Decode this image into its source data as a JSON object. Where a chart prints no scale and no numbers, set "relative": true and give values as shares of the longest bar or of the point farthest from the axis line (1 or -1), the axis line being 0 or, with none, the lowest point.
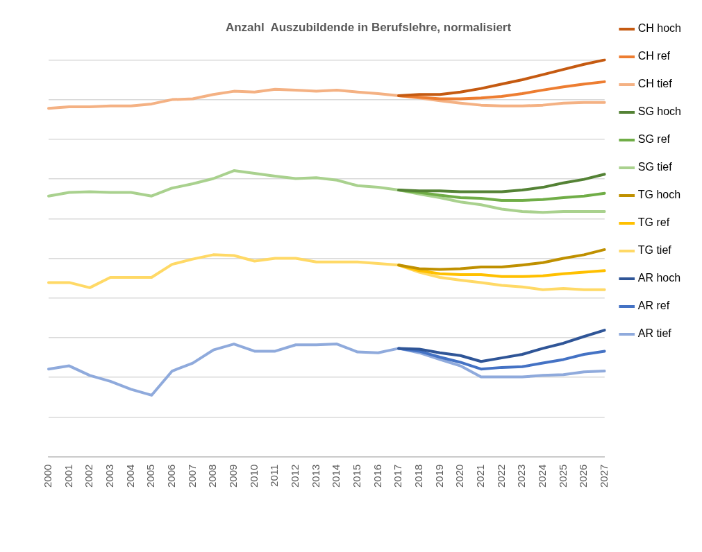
{
  "chart_data": {
    "type": "line",
    "title": "Anzahl  Auszubildende in Berufslehre, normalisiert",
    "relative": true,
    "grid": "y",
    "legend": "right",
    "categories": [
      "2000",
      "2001",
      "2002",
      "2003",
      "2004",
      "2005",
      "2006",
      "2007",
      "2008",
      "2009",
      "2010",
      "2011",
      "2012",
      "2013",
      "2014",
      "2015",
      "2016",
      "2017",
      "2018",
      "2019",
      "2020",
      "2021",
      "2022",
      "2023",
      "2024",
      "2025",
      "2026",
      "2027"
    ],
    "series": [
      {
        "name": "CH hoch",
        "color": "#c55a11",
        "values": [
          null,
          null,
          null,
          null,
          null,
          null,
          null,
          null,
          null,
          null,
          null,
          null,
          null,
          null,
          null,
          null,
          null,
          0.91,
          0.913,
          0.913,
          0.919,
          0.928,
          0.939,
          0.95,
          0.963,
          0.976,
          0.989,
          1.0
        ]
      },
      {
        "name": "CH ref",
        "color": "#ed7d31",
        "values": [
          null,
          null,
          null,
          null,
          null,
          null,
          null,
          null,
          null,
          null,
          null,
          null,
          null,
          null,
          null,
          null,
          null,
          0.91,
          0.906,
          0.902,
          0.902,
          0.904,
          0.908,
          0.915,
          0.924,
          0.932,
          0.939,
          0.945
        ]
      },
      {
        "name": "CH tief",
        "color": "#f4b183",
        "values": [
          0.878,
          0.882,
          0.882,
          0.884,
          0.884,
          0.889,
          0.9,
          0.902,
          0.913,
          0.921,
          0.919,
          0.926,
          0.924,
          0.921,
          0.924,
          0.919,
          0.915,
          0.91,
          0.904,
          0.897,
          0.891,
          0.886,
          0.884,
          0.884,
          0.886,
          0.891,
          0.893,
          0.893
        ]
      },
      {
        "name": "SG hoch",
        "color": "#548235",
        "values": [
          null,
          null,
          null,
          null,
          null,
          null,
          null,
          null,
          null,
          null,
          null,
          null,
          null,
          null,
          null,
          null,
          null,
          0.672,
          0.67,
          0.67,
          0.668,
          0.668,
          0.668,
          0.672,
          0.679,
          0.69,
          0.699,
          0.712
        ]
      },
      {
        "name": "SG ref",
        "color": "#70ad47",
        "values": [
          null,
          null,
          null,
          null,
          null,
          null,
          null,
          null,
          null,
          null,
          null,
          null,
          null,
          null,
          null,
          null,
          null,
          0.672,
          0.666,
          0.659,
          0.653,
          0.651,
          0.646,
          0.646,
          0.648,
          0.653,
          0.657,
          0.664
        ]
      },
      {
        "name": "SG tief",
        "color": "#a9d18e",
        "values": [
          0.657,
          0.666,
          0.668,
          0.666,
          0.666,
          0.657,
          0.677,
          0.688,
          0.701,
          0.721,
          0.714,
          0.707,
          0.701,
          0.703,
          0.697,
          0.683,
          0.679,
          0.672,
          0.662,
          0.653,
          0.642,
          0.635,
          0.624,
          0.618,
          0.616,
          0.618,
          0.618,
          0.618
        ]
      },
      {
        "name": "TG hoch",
        "color": "#bf9000",
        "values": [
          null,
          null,
          null,
          null,
          null,
          null,
          null,
          null,
          null,
          null,
          null,
          null,
          null,
          null,
          null,
          null,
          null,
          0.483,
          0.474,
          0.472,
          0.474,
          0.478,
          0.478,
          0.483,
          0.489,
          0.5,
          0.509,
          0.522
        ]
      },
      {
        "name": "TG ref",
        "color": "#ffc000",
        "values": [
          null,
          null,
          null,
          null,
          null,
          null,
          null,
          null,
          null,
          null,
          null,
          null,
          null,
          null,
          null,
          null,
          null,
          0.483,
          0.469,
          0.461,
          0.459,
          0.459,
          0.454,
          0.454,
          0.456,
          0.461,
          0.465,
          0.469
        ]
      },
      {
        "name": "TG tief",
        "color": "#ffd966",
        "values": [
          0.439,
          0.439,
          0.426,
          0.452,
          0.452,
          0.452,
          0.485,
          0.498,
          0.509,
          0.507,
          0.493,
          0.5,
          0.5,
          0.491,
          0.491,
          0.491,
          0.487,
          0.483,
          0.465,
          0.452,
          0.445,
          0.439,
          0.432,
          0.428,
          0.421,
          0.424,
          0.421,
          0.421
        ]
      },
      {
        "name": "AR hoch",
        "color": "#2f5597",
        "values": [
          null,
          null,
          null,
          null,
          null,
          null,
          null,
          null,
          null,
          null,
          null,
          null,
          null,
          null,
          null,
          null,
          null,
          0.273,
          0.271,
          0.262,
          0.255,
          0.24,
          0.249,
          0.258,
          0.273,
          0.286,
          0.303,
          0.319
        ]
      },
      {
        "name": "AR ref",
        "color": "#4472c4",
        "values": [
          null,
          null,
          null,
          null,
          null,
          null,
          null,
          null,
          null,
          null,
          null,
          null,
          null,
          null,
          null,
          null,
          null,
          0.273,
          0.266,
          0.251,
          0.238,
          0.221,
          0.225,
          0.227,
          0.236,
          0.245,
          0.258,
          0.266
        ]
      },
      {
        "name": "AR tief",
        "color": "#8faadc",
        "values": [
          0.221,
          0.229,
          0.205,
          0.19,
          0.17,
          0.155,
          0.216,
          0.236,
          0.269,
          0.284,
          0.266,
          0.266,
          0.282,
          0.282,
          0.284,
          0.264,
          0.262,
          0.273,
          0.262,
          0.245,
          0.229,
          0.201,
          0.201,
          0.201,
          0.205,
          0.207,
          0.214,
          0.216
        ]
      }
    ]
  }
}
